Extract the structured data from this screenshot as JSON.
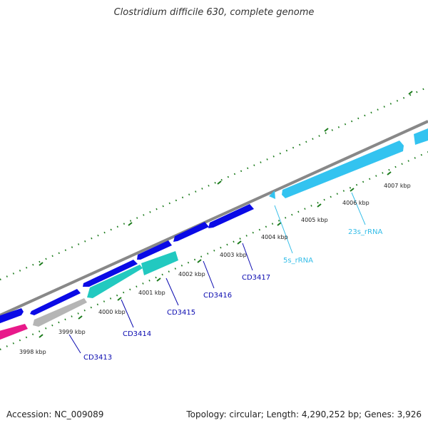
{
  "title": "Clostridium difficile 630, complete genome",
  "footer": {
    "accession": "Accession: NC_009089",
    "stats": "Topology: circular; Length: 4,290,252 bp; Genes: 3,926"
  },
  "colors": {
    "backbone": "#888888",
    "tick": "#1a7a1a",
    "cds_dark": "#0a0ae6",
    "cds_teal": "#22c9c0",
    "cds_grey": "#b5b5b5",
    "cds_magenta": "#e8198a",
    "rrna": "#33c3f0",
    "label_blue": "#0a0ab0",
    "label_cyan": "#33bde8"
  },
  "scale_ticks": [
    "3998 kbp",
    "3999 kbp",
    "4000 kbp",
    "4001 kbp",
    "4002 kbp",
    "4003 kbp",
    "4004 kbp",
    "4005 kbp",
    "4006 kbp",
    "4007 kbp"
  ],
  "gene_labels": {
    "cd3413": "CD3413",
    "cd3414": "CD3414",
    "cd3415": "CD3415",
    "cd3416": "CD3416",
    "cd3417": "CD3417",
    "rrna5s": "5s_rRNA",
    "rrna23s": "23s_rRNA"
  }
}
